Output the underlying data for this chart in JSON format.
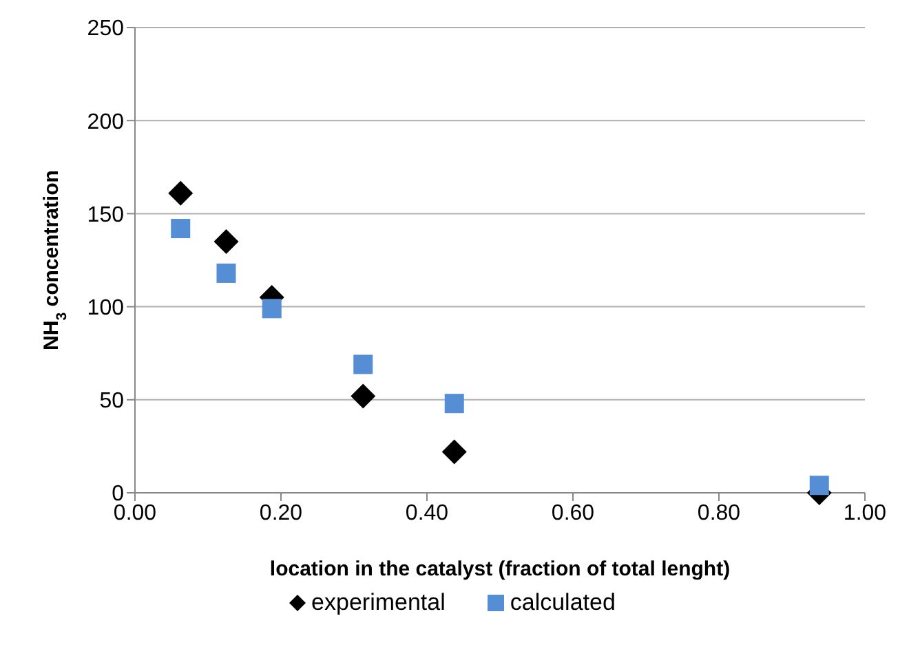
{
  "chart_data": {
    "type": "scatter",
    "xlabel": "location in the catalyst (fraction of total lenght)",
    "ylabel": "NH$_{3}$ concentration",
    "x": [
      0.0625,
      0.125,
      0.1875,
      0.3125,
      0.4375,
      0.9375
    ],
    "series": [
      {
        "name": "experimental",
        "color": "#000000",
        "marker": "diamond",
        "values": [
          161,
          135,
          105,
          52,
          22,
          0
        ]
      },
      {
        "name": "calculated",
        "color": "#558ed5",
        "marker": "square",
        "values": [
          142,
          118,
          99,
          69,
          48,
          4
        ]
      }
    ],
    "xlim": [
      0,
      1
    ],
    "xticks": [
      {
        "value": 0,
        "label": "0.00"
      },
      {
        "value": 0.2,
        "label": "0.20"
      },
      {
        "value": 0.4,
        "label": "0.40"
      },
      {
        "value": 0.6,
        "label": "0.60"
      },
      {
        "value": 0.8,
        "label": "0.80"
      },
      {
        "value": 1,
        "label": "1.00"
      }
    ],
    "ylim": [
      0,
      250
    ],
    "yticks": [
      0,
      50,
      100,
      150,
      200,
      250
    ],
    "grid": "y",
    "legend": "bottom"
  }
}
